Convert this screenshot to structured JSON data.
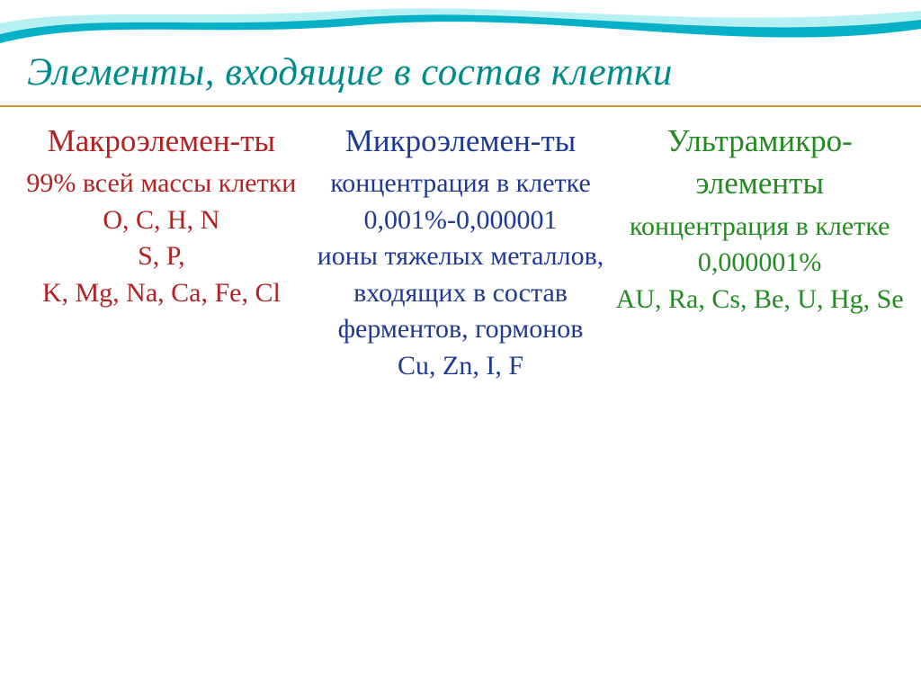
{
  "colors": {
    "title": "#008b8b",
    "rule": "#cc9933",
    "col1": "#b22222",
    "col2": "#1f3a93",
    "col3": "#228b22",
    "wave_outer": "#06b0c6",
    "wave_inner": "#b7f0f2",
    "wave_white": "#ffffff"
  },
  "title": "Элементы, входящие в состав клетки",
  "columns": [
    {
      "heading": "Макроэлемен-ты",
      "sub": "99% всей массы клетки",
      "body": "O, C, H, N\nS, P,\nK, Mg, Na, Ca, Fe, Cl"
    },
    {
      "heading": "Микроэлемен-ты",
      "sub": "концентрация в клетке 0,001%-0,000001",
      "body": "ионы тяжелых металлов, входящих в состав ферментов, гормонов\nCu, Zn, I, F"
    },
    {
      "heading": "Ультрамикро-элементы",
      "sub": "концентрация в клетке 0,000001%",
      "body": "AU, Ra, Cs, Be, U, Hg, Se"
    }
  ]
}
